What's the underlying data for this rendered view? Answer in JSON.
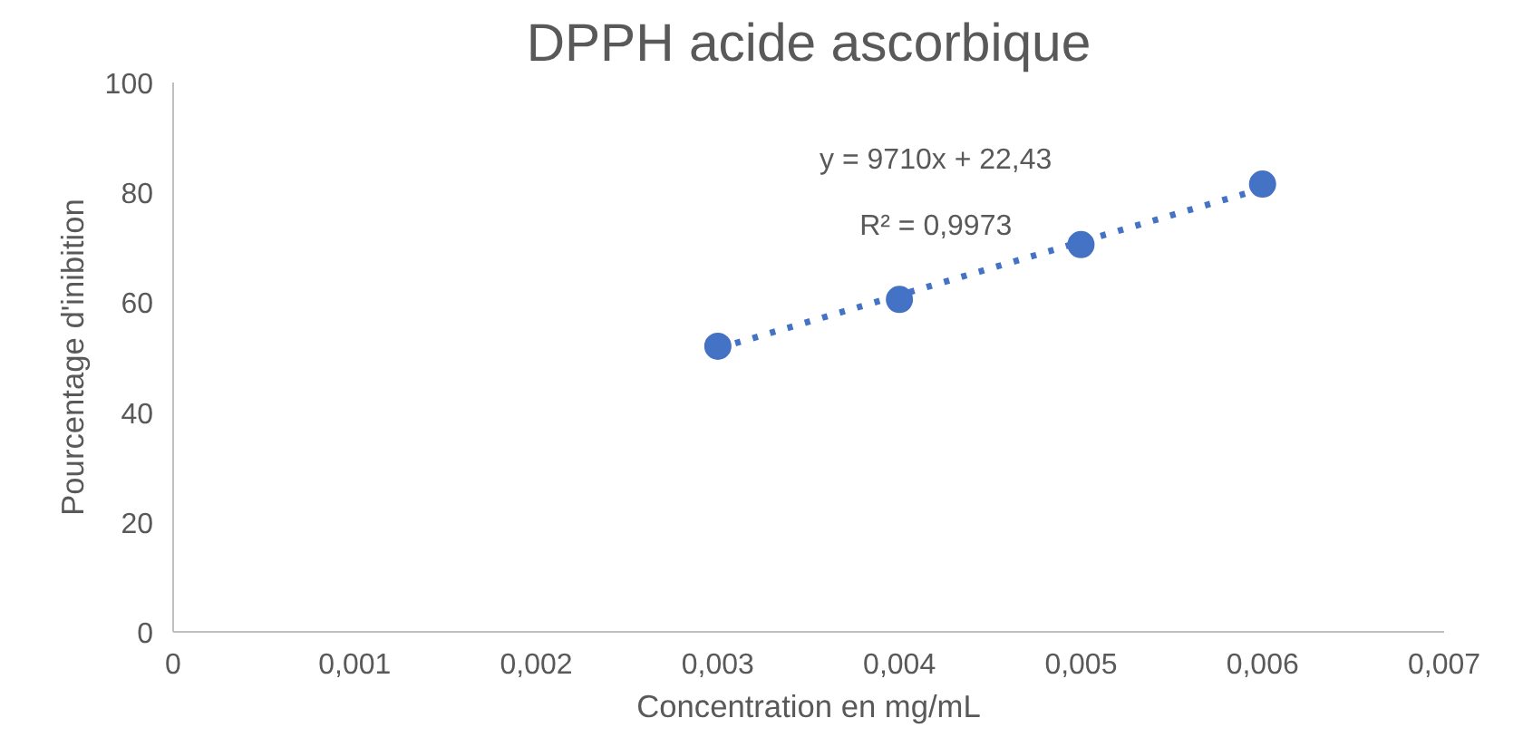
{
  "chart_data": {
    "type": "scatter",
    "title": "DPPH acide ascorbique",
    "xlabel": "Concentration en mg/mL",
    "ylabel": "Pourcentage d'inibition",
    "annotations": [
      "y = 9710x + 22,43",
      "R² = 0,9973"
    ],
    "x": [
      0.003,
      0.004,
      0.005,
      0.006
    ],
    "series": [
      {
        "color": "#4472c4",
        "values": [
          52,
          60.5,
          70.5,
          81.5
        ],
        "marker": "circle"
      },
      {
        "type": "line",
        "x": [
          0.003,
          0.006
        ],
        "color": "#4472c4",
        "values": [
          51.6,
          80.7
        ],
        "line_style": "dotted",
        "marker": "none"
      }
    ],
    "xlim": [
      0,
      0.007
    ],
    "xticks": [
      0,
      {
        "value": 0.001,
        "label": "0,001"
      },
      {
        "value": 0.002,
        "label": "0,002"
      },
      {
        "value": 0.003,
        "label": "0,003"
      },
      {
        "value": 0.004,
        "label": "0,004"
      },
      {
        "value": 0.005,
        "label": "0,005"
      },
      {
        "value": 0.006,
        "label": "0,006"
      },
      {
        "value": 0.007,
        "label": "0,007"
      }
    ],
    "ylim": [
      0,
      100
    ],
    "yticks": [
      0,
      20,
      40,
      60,
      80,
      100
    ],
    "grid": false
  }
}
